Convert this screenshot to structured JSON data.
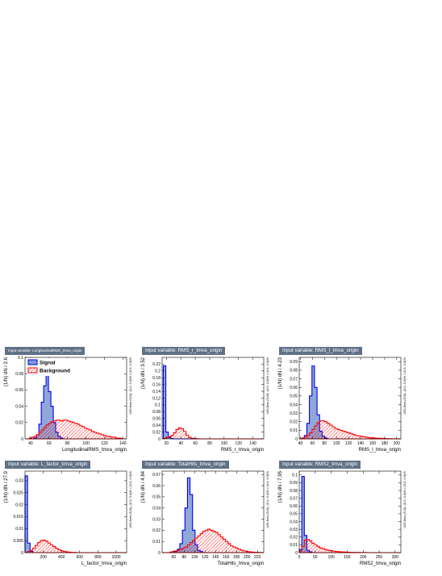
{
  "colors": {
    "signal_line": "#0000ee",
    "signal_fill": "#7d99d1",
    "background_line": "#ff0000",
    "title_bg": "#5f7187",
    "canvas_bg": "#ededed"
  },
  "legend": {
    "signal": "Signal",
    "background": "Background"
  },
  "chart_data": [
    {
      "type": "histogram",
      "title": "Input variable: LongitudinalRMS_tmva_origin",
      "xlabel": "LongitudinalRMS_tmva_origin",
      "ylabel": "(1/N) dN / 2.6",
      "side_label": "U/O-flow (S,B): (0.0, 0.0)% / (0.0, 0.0)%",
      "xlim": [
        34,
        144
      ],
      "ylim": [
        0,
        0.1
      ],
      "xticks": [
        "40",
        "60",
        "80",
        "100",
        "120",
        "140"
      ],
      "yticks": [
        "0",
        "0.02",
        "0.04",
        "0.06",
        "0.08",
        "0.1"
      ],
      "legend_shown": true,
      "bins": [
        36,
        38.6,
        41.2,
        43.8,
        46.4,
        49,
        51.6,
        54.2,
        56.8,
        59.4,
        62,
        64.6,
        67.2,
        69.8,
        72.4,
        75,
        77.6,
        80.2,
        82.8,
        85.4,
        88,
        90.6,
        93.2,
        95.8,
        98.4,
        101,
        103.6,
        106.2,
        108.8,
        111.4,
        114,
        116.6,
        119.2,
        121.8,
        124.4,
        127,
        129.6,
        132.2,
        134.8,
        137.4,
        140
      ],
      "signal": [
        0,
        0,
        0,
        0.001,
        0.005,
        0.018,
        0.045,
        0.065,
        0.085,
        0.058,
        0.04,
        0.02,
        0.008,
        0.003,
        0.001,
        0,
        0,
        0,
        0,
        0,
        0,
        0,
        0,
        0,
        0,
        0,
        0,
        0,
        0,
        0,
        0,
        0,
        0,
        0,
        0,
        0,
        0,
        0,
        0,
        0
      ],
      "background": [
        0,
        0.001,
        0.002,
        0.003,
        0.005,
        0.008,
        0.011,
        0.014,
        0.017,
        0.019,
        0.021,
        0.022,
        0.023,
        0.023,
        0.022,
        0.023,
        0.023,
        0.022,
        0.021,
        0.02,
        0.019,
        0.018,
        0.016,
        0.015,
        0.013,
        0.012,
        0.011,
        0.009,
        0.008,
        0.007,
        0.006,
        0.005,
        0.004,
        0.003,
        0.003,
        0.002,
        0.002,
        0.001,
        0.001,
        0.0005
      ]
    },
    {
      "type": "histogram",
      "title": "Input variable: RMS_r_tmva_origin",
      "xlabel": "RMS_r_tmva_origin",
      "ylabel": "(1/N) dN / 3.52",
      "side_label": "U/O-flow (S,B): (0.0, 0.0)% / (0.0, 0.0)%",
      "xlim": [
        14,
        155
      ],
      "ylim": [
        0,
        0.24
      ],
      "xticks": [
        "20",
        "40",
        "60",
        "80",
        "100",
        "120",
        "140"
      ],
      "yticks": [
        "0",
        "0.02",
        "0.04",
        "0.06",
        "0.08",
        "0.1",
        "0.12",
        "0.14",
        "0.16",
        "0.18",
        "0.2",
        "0.22"
      ],
      "legend_shown": false,
      "bins": [
        15.6,
        19.12,
        22.64,
        26.16,
        29.68,
        33.2,
        36.72,
        40.24,
        43.76,
        47.28,
        50.8,
        54.32,
        57.84,
        61.36,
        64.88,
        68.4,
        71.92,
        75.44,
        78.96,
        82.48,
        86,
        89.52,
        93.04,
        96.56,
        100.08,
        103.6,
        107.12,
        110.64,
        114.16,
        117.68,
        121.2,
        124.72,
        128.24,
        131.76,
        135.28,
        138.8,
        142.32,
        145.84,
        149.36,
        152.88
      ],
      "signal": [
        0.215,
        0.02,
        0.004,
        0.001,
        0,
        0,
        0,
        0,
        0,
        0,
        0,
        0,
        0,
        0,
        0,
        0,
        0,
        0,
        0,
        0,
        0,
        0,
        0,
        0,
        0,
        0,
        0,
        0,
        0,
        0,
        0,
        0,
        0,
        0,
        0,
        0,
        0,
        0,
        0,
        0
      ],
      "background": [
        0.002,
        0.004,
        0.006,
        0.01,
        0.018,
        0.028,
        0.032,
        0.03,
        0.022,
        0.011,
        0.004,
        0.002,
        0.001,
        0.0005,
        0,
        0,
        0,
        0,
        0,
        0,
        0,
        0,
        0,
        0,
        0,
        0,
        0,
        0,
        0,
        0,
        0,
        0,
        0,
        0,
        0,
        0,
        0,
        0,
        0,
        0
      ]
    },
    {
      "type": "histogram",
      "title": "Input variable: RMS_l_tmva_origin",
      "xlabel": "RMS_l_tmva_origin",
      "ylabel": "(1/N) dN / 4.23",
      "side_label": "U/O-flow (S,B): (0.0, 0.0)% / (0.0, 0.0)%",
      "xlim": [
        38,
        207
      ],
      "ylim": [
        0,
        0.095
      ],
      "xticks": [
        "40",
        "60",
        "80",
        "100",
        "120",
        "140",
        "160",
        "180",
        "200"
      ],
      "yticks": [
        "0",
        "0.01",
        "0.02",
        "0.03",
        "0.04",
        "0.05",
        "0.06",
        "0.07",
        "0.08",
        "0.09"
      ],
      "legend_shown": false,
      "bins": [
        38,
        42.23,
        46.46,
        50.69,
        54.92,
        59.15,
        63.38,
        67.61,
        71.84,
        76.07,
        80.3,
        84.53,
        88.76,
        92.99,
        97.22,
        101.45,
        105.68,
        109.91,
        114.14,
        118.37,
        122.6,
        126.83,
        131.06,
        135.29,
        139.52,
        143.75,
        147.98,
        152.21,
        156.44,
        160.67,
        164.9,
        169.13,
        173.36,
        177.59,
        181.82,
        186.05,
        190.28,
        194.51,
        198.74,
        202.97,
        207.2
      ],
      "signal": [
        0,
        0.001,
        0.004,
        0.018,
        0.05,
        0.085,
        0.06,
        0.028,
        0.009,
        0.003,
        0.001,
        0,
        0,
        0,
        0,
        0,
        0,
        0,
        0,
        0,
        0,
        0,
        0,
        0,
        0,
        0,
        0,
        0,
        0,
        0,
        0,
        0,
        0,
        0,
        0,
        0,
        0,
        0,
        0,
        0
      ],
      "background": [
        0,
        0.001,
        0.002,
        0.004,
        0.007,
        0.011,
        0.015,
        0.019,
        0.021,
        0.021,
        0.02,
        0.018,
        0.016,
        0.014,
        0.012,
        0.011,
        0.01,
        0.009,
        0.008,
        0.007,
        0.006,
        0.005,
        0.004,
        0.0035,
        0.003,
        0.0025,
        0.002,
        0.0015,
        0.001,
        0.001,
        0.0008,
        0.0006,
        0.0005,
        0.0004,
        0.0003,
        0.0002,
        0.0001,
        0.0001,
        0.0001,
        0
      ]
    },
    {
      "type": "histogram",
      "title": "Input variable: L_factor_tmva_origin",
      "xlabel": "L_factor_tmva_origin",
      "ylabel": "(1/N) dN / 27.9",
      "side_label": "U/O-flow (S,B): (0.0, 0.0)% / (0.0, 0.0)%",
      "xlim": [
        0,
        1115
      ],
      "ylim": [
        0,
        0.034
      ],
      "xticks": [
        "200",
        "400",
        "600",
        "800",
        "1000"
      ],
      "yticks": [
        "0",
        "0.005",
        "0.01",
        "0.015",
        "0.02",
        "0.025",
        "0.03"
      ],
      "legend_shown": false,
      "bins": [
        0,
        27.9,
        55.8,
        83.7,
        111.6,
        139.5,
        167.4,
        195.3,
        223.2,
        251.1,
        279,
        306.9,
        334.8,
        362.7,
        390.6,
        418.5,
        446.4,
        474.3,
        502.2,
        530.1,
        558,
        585.9,
        613.8,
        641.7,
        669.6,
        697.5,
        725.4,
        753.3,
        781.2,
        809.1,
        837,
        864.9,
        892.8,
        920.7,
        948.6,
        976.5,
        1004.4,
        1032.3,
        1060.2,
        1088.1,
        1116
      ],
      "signal": [
        0.032,
        0.004,
        0.0005,
        0,
        0,
        0,
        0,
        0,
        0,
        0,
        0,
        0,
        0,
        0,
        0,
        0,
        0,
        0,
        0,
        0,
        0,
        0,
        0,
        0,
        0,
        0,
        0,
        0,
        0,
        0,
        0,
        0,
        0,
        0,
        0,
        0,
        0,
        0,
        0,
        0
      ],
      "background": [
        0,
        0.0005,
        0.001,
        0.0018,
        0.003,
        0.0042,
        0.005,
        0.0052,
        0.0048,
        0.004,
        0.0032,
        0.0025,
        0.0018,
        0.0012,
        0.0008,
        0.0005,
        0.0003,
        0.0002,
        0.0001,
        0.0001,
        0,
        0,
        0,
        0,
        0,
        0,
        0,
        0,
        0,
        0,
        0,
        0,
        0,
        0,
        0,
        0,
        0,
        0,
        0,
        0
      ]
    },
    {
      "type": "histogram",
      "title": "Input variable: TotalHits_tmva_origin",
      "xlabel": "TotalHits_tmva_origin",
      "ylabel": "(1/N) dN / 4.84",
      "side_label": "U/O-flow (S,B): (0.0, 0.0)% / (0.0, 0.0)%",
      "xlim": [
        38,
        232
      ],
      "ylim": [
        0,
        0.073
      ],
      "xticks": [
        "60",
        "80",
        "100",
        "120",
        "140",
        "160",
        "180",
        "200",
        "220"
      ],
      "yticks": [
        "0",
        "0.01",
        "0.02",
        "0.03",
        "0.04",
        "0.05",
        "0.06",
        "0.07"
      ],
      "legend_shown": false,
      "bins": [
        38,
        42.84,
        47.68,
        52.52,
        57.36,
        62.2,
        67.04,
        71.88,
        76.72,
        81.56,
        86.4,
        91.24,
        96.08,
        100.92,
        105.76,
        110.6,
        115.44,
        120.28,
        125.12,
        129.96,
        134.8,
        139.64,
        144.48,
        149.32,
        154.16,
        159,
        163.84,
        168.68,
        173.52,
        178.36,
        183.2,
        188.04,
        192.88,
        197.72,
        202.56,
        207.4,
        212.24,
        217.08,
        221.92,
        226.76,
        231.6
      ],
      "signal": [
        0,
        0,
        0,
        0,
        0,
        0.001,
        0.003,
        0.008,
        0.02,
        0.04,
        0.067,
        0.052,
        0.02,
        0.007,
        0.002,
        0.001,
        0,
        0,
        0,
        0,
        0,
        0,
        0,
        0,
        0,
        0,
        0,
        0,
        0,
        0,
        0,
        0,
        0,
        0,
        0,
        0,
        0,
        0,
        0,
        0
      ],
      "background": [
        0,
        0,
        0,
        0.0005,
        0.001,
        0.0015,
        0.002,
        0.003,
        0.004,
        0.005,
        0.007,
        0.009,
        0.011,
        0.013,
        0.015,
        0.017,
        0.019,
        0.02,
        0.021,
        0.02,
        0.019,
        0.018,
        0.016,
        0.014,
        0.012,
        0.01,
        0.008,
        0.006,
        0.005,
        0.004,
        0.003,
        0.002,
        0.0015,
        0.001,
        0.0008,
        0.0005,
        0.0003,
        0.0002,
        0.0001,
        0
      ]
    },
    {
      "type": "histogram",
      "title": "Input variable: RMS2_tmva_origin",
      "xlabel": "RMS2_tmva_origin",
      "ylabel": "(1/N) dN / 7.95",
      "side_label": "U/O-flow (S,B): (0.0, 0.0)% / (0.0, 0.0)%",
      "xlim": [
        0,
        318
      ],
      "ylim": [
        0,
        0.105
      ],
      "xticks": [
        "0",
        "50",
        "100",
        "150",
        "200",
        "250",
        "300"
      ],
      "yticks": [
        "0",
        "0.01",
        "0.02",
        "0.03",
        "0.04",
        "0.05",
        "0.06",
        "0.07",
        "0.08",
        "0.09",
        "0.1"
      ],
      "legend_shown": false,
      "bins": [
        0,
        7.95,
        15.9,
        23.85,
        31.8,
        39.75,
        47.7,
        55.65,
        63.6,
        71.55,
        79.5,
        87.45,
        95.4,
        103.35,
        111.3,
        119.25,
        127.2,
        135.15,
        143.1,
        151.05,
        159,
        166.95,
        174.9,
        182.85,
        190.8,
        198.75,
        206.7,
        214.65,
        222.6,
        230.55,
        238.5,
        246.45,
        254.4,
        262.35,
        270.3,
        278.25,
        286.2,
        294.15,
        302.1,
        310.05,
        318
      ],
      "signal": [
        0.004,
        0.098,
        0.022,
        0.003,
        0.001,
        0,
        0,
        0,
        0,
        0,
        0,
        0,
        0,
        0,
        0,
        0,
        0,
        0,
        0,
        0,
        0,
        0,
        0,
        0,
        0,
        0,
        0,
        0,
        0,
        0,
        0,
        0,
        0,
        0,
        0,
        0,
        0,
        0,
        0,
        0
      ],
      "background": [
        0.002,
        0.008,
        0.016,
        0.017,
        0.015,
        0.012,
        0.01,
        0.008,
        0.006,
        0.005,
        0.004,
        0.003,
        0.0025,
        0.002,
        0.0015,
        0.0012,
        0.001,
        0.0008,
        0.0006,
        0.0005,
        0.0004,
        0.0003,
        0.0002,
        0.0002,
        0.0001,
        0.0001,
        0.0001,
        0,
        0,
        0,
        0,
        0,
        0,
        0,
        0,
        0,
        0,
        0,
        0,
        0
      ]
    }
  ]
}
